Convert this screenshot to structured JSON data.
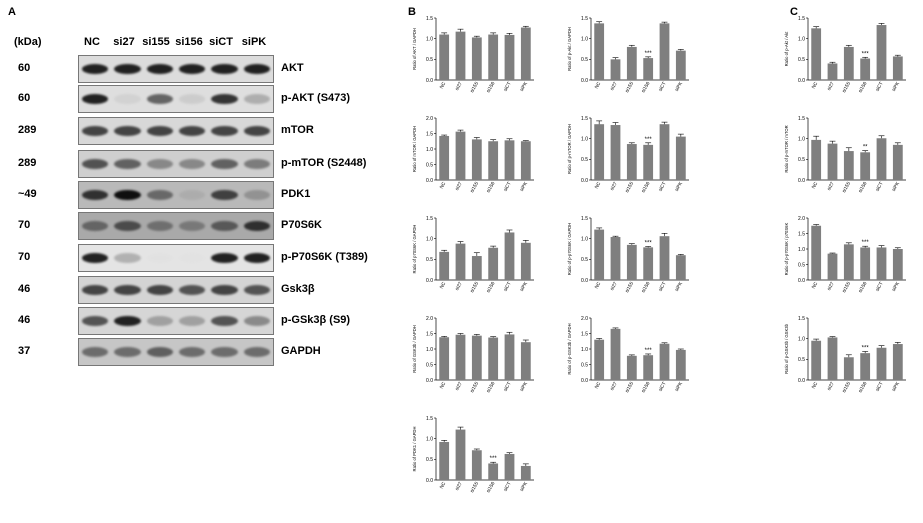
{
  "panels": {
    "a": "A",
    "b": "B",
    "c": "C"
  },
  "blot": {
    "kda_label": "(kDa)",
    "lanes": [
      "NC",
      "si27",
      "si155",
      "si156",
      "siCT",
      "siPK"
    ],
    "rows": [
      {
        "mw": "60",
        "protein": "AKT",
        "bg": "#dcdcdc",
        "intensity": [
          0.95,
          0.95,
          0.95,
          0.95,
          0.95,
          0.95
        ]
      },
      {
        "mw": "60",
        "protein": "p-AKT (S473)",
        "bg": "#dedede",
        "intensity": [
          0.95,
          0.2,
          0.75,
          0.25,
          0.9,
          0.45
        ]
      },
      {
        "mw": "289",
        "protein": "mTOR",
        "bg": "#d8d8d8",
        "intensity": [
          0.85,
          0.85,
          0.85,
          0.85,
          0.85,
          0.85
        ]
      },
      {
        "mw": "289",
        "protein": "p-mTOR (S2448)",
        "bg": "#cfcfcf",
        "intensity": [
          0.8,
          0.75,
          0.6,
          0.6,
          0.75,
          0.65
        ]
      },
      {
        "mw": "~49",
        "protein": "PDK1",
        "bg": "#b9b9b9",
        "intensity": [
          0.9,
          1.0,
          0.7,
          0.3,
          0.85,
          0.5
        ]
      },
      {
        "mw": "70",
        "protein": "P70S6K",
        "bg": "#a9a9a9",
        "intensity": [
          0.7,
          0.8,
          0.65,
          0.6,
          0.75,
          0.9
        ]
      },
      {
        "mw": "70",
        "protein": "p-P70S6K (T389)",
        "bg": "#e4e4e4",
        "intensity": [
          0.95,
          0.45,
          0.05,
          0.02,
          0.95,
          0.95
        ]
      },
      {
        "mw": "46",
        "protein": "Gsk3β",
        "bg": "#d4d4d4",
        "intensity": [
          0.85,
          0.85,
          0.85,
          0.8,
          0.85,
          0.8
        ]
      },
      {
        "mw": "46",
        "protein": "p-GSk3β (S9)",
        "bg": "#d6d6d6",
        "intensity": [
          0.8,
          0.95,
          0.5,
          0.5,
          0.8,
          0.6
        ]
      },
      {
        "mw": "37",
        "protein": "GAPDH",
        "bg": "#c6c6c6",
        "intensity": [
          0.7,
          0.7,
          0.75,
          0.7,
          0.7,
          0.7
        ]
      }
    ]
  },
  "chart_data": [
    {
      "type": "bar",
      "ylabel": "Ratio of AKT / GAPDH",
      "categories": [
        "NC",
        "si27",
        "si155",
        "si156",
        "siCT",
        "siPK"
      ],
      "values": [
        1.1,
        1.17,
        1.03,
        1.1,
        1.09,
        1.27
      ],
      "errors": [
        0.04,
        0.06,
        0.03,
        0.04,
        0.04,
        0.03
      ],
      "ylim": [
        0,
        1.5
      ],
      "yticks": [
        "0.0",
        "0.5",
        "1.0",
        "1.5"
      ],
      "stars": ""
    },
    {
      "type": "bar",
      "ylabel": "Ratio of p-Akt / GAPDH",
      "categories": [
        "NC",
        "si27",
        "si155",
        "si156",
        "siCT",
        "siPK"
      ],
      "values": [
        1.37,
        0.5,
        0.8,
        0.53,
        1.37,
        0.71
      ],
      "errors": [
        0.04,
        0.04,
        0.04,
        0.03,
        0.03,
        0.03
      ],
      "ylim": [
        0,
        1.5
      ],
      "yticks": [
        "0.0",
        "0.5",
        "1.0",
        "1.5"
      ],
      "stars": "***",
      "star_index": 3
    },
    {
      "type": "bar",
      "ylabel": "Ratio of mTOR / GAPDH",
      "categories": [
        "NC",
        "si27",
        "si155",
        "si156",
        "siCT",
        "siPK"
      ],
      "values": [
        1.42,
        1.56,
        1.31,
        1.25,
        1.28,
        1.25
      ],
      "errors": [
        0.03,
        0.05,
        0.06,
        0.05,
        0.05,
        0.02
      ],
      "ylim": [
        0,
        2.0
      ],
      "yticks": [
        "0.0",
        "0.5",
        "1.0",
        "1.5",
        "2.0"
      ],
      "stars": ""
    },
    {
      "type": "bar",
      "ylabel": "Ratio of p-mTOR / GAPDH",
      "categories": [
        "NC",
        "si27",
        "si155",
        "si156",
        "siCT",
        "siPK"
      ],
      "values": [
        1.35,
        1.33,
        0.87,
        0.85,
        1.35,
        1.05
      ],
      "errors": [
        0.08,
        0.06,
        0.03,
        0.05,
        0.05,
        0.06
      ],
      "ylim": [
        0,
        1.5
      ],
      "yticks": [
        "0.0",
        "0.5",
        "1.0",
        "1.5"
      ],
      "stars": "***",
      "star_index": 3
    },
    {
      "type": "bar",
      "ylabel": "Ratio of p70S6K / GAPDH",
      "categories": [
        "NC",
        "si27",
        "si155",
        "si156",
        "siCT",
        "siPK"
      ],
      "values": [
        0.68,
        0.88,
        0.58,
        0.78,
        1.15,
        0.9
      ],
      "errors": [
        0.04,
        0.05,
        0.08,
        0.04,
        0.06,
        0.06
      ],
      "ylim": [
        0,
        1.5
      ],
      "yticks": [
        "0.0",
        "0.5",
        "1.0",
        "1.5"
      ],
      "stars": ""
    },
    {
      "type": "bar",
      "ylabel": "Ratio of p-p70S6K / GAPDH",
      "categories": [
        "NC",
        "si27",
        "si155",
        "si156",
        "siCT",
        "siPK"
      ],
      "values": [
        1.22,
        1.04,
        0.85,
        0.79,
        1.06,
        0.6
      ],
      "errors": [
        0.04,
        0.02,
        0.03,
        0.02,
        0.07,
        0.02
      ],
      "ylim": [
        0,
        1.5
      ],
      "yticks": [
        "0.0",
        "0.5",
        "1.0",
        "1.5"
      ],
      "stars": "***",
      "star_index": 3
    },
    {
      "type": "bar",
      "ylabel": "Ratio of GSK3b / GAPDH",
      "categories": [
        "NC",
        "si27",
        "si155",
        "si156",
        "siCT",
        "siPK"
      ],
      "values": [
        1.38,
        1.46,
        1.43,
        1.37,
        1.47,
        1.22
      ],
      "errors": [
        0.03,
        0.04,
        0.04,
        0.03,
        0.07,
        0.07
      ],
      "ylim": [
        0,
        2.0
      ],
      "yticks": [
        "0.0",
        "0.5",
        "1.0",
        "1.5",
        "2.0"
      ],
      "stars": ""
    },
    {
      "type": "bar",
      "ylabel": "Ratio of p-GSK3b / GAPDH",
      "categories": [
        "NC",
        "si27",
        "si155",
        "si156",
        "siCT",
        "siPK"
      ],
      "values": [
        1.3,
        1.65,
        0.78,
        0.8,
        1.17,
        0.97
      ],
      "errors": [
        0.04,
        0.03,
        0.03,
        0.04,
        0.03,
        0.03
      ],
      "ylim": [
        0,
        2.0
      ],
      "yticks": [
        "0.0",
        "0.5",
        "1.0",
        "1.5",
        "2.0"
      ],
      "stars": "***",
      "star_index": 3
    },
    {
      "type": "bar",
      "ylabel": "Ratio of PDK1 / GAPDH",
      "categories": [
        "NC",
        "si27",
        "si155",
        "si156",
        "siCT",
        "siPK"
      ],
      "values": [
        0.92,
        1.22,
        0.72,
        0.4,
        0.63,
        0.34
      ],
      "errors": [
        0.04,
        0.06,
        0.03,
        0.03,
        0.03,
        0.05
      ],
      "ylim": [
        0,
        1.5
      ],
      "yticks": [
        "0.0",
        "0.5",
        "1.0",
        "1.5"
      ],
      "stars": "***",
      "star_index": 3
    },
    {
      "type": "bar",
      "ylabel": "Ratio of p-Akt / Akt",
      "categories": [
        "NC",
        "si27",
        "si155",
        "si156",
        "siCT",
        "siPK"
      ],
      "values": [
        1.25,
        0.4,
        0.8,
        0.52,
        1.33,
        0.57
      ],
      "errors": [
        0.04,
        0.03,
        0.04,
        0.03,
        0.04,
        0.03
      ],
      "ylim": [
        0,
        1.5
      ],
      "yticks": [
        "0.0",
        "0.5",
        "1.0",
        "1.5"
      ],
      "stars": "***",
      "star_index": 3
    },
    {
      "type": "bar",
      "ylabel": "Ratio of p-mTOR / mTOR",
      "categories": [
        "NC",
        "si27",
        "si155",
        "si156",
        "siCT",
        "siPK"
      ],
      "values": [
        0.97,
        0.88,
        0.7,
        0.67,
        1.01,
        0.85
      ],
      "errors": [
        0.09,
        0.06,
        0.08,
        0.04,
        0.06,
        0.05
      ],
      "ylim": [
        0,
        1.5
      ],
      "yticks": [
        "0.0",
        "0.5",
        "1.0",
        "1.5"
      ],
      "stars": "**",
      "star_index": 3
    },
    {
      "type": "bar",
      "ylabel": "Ratio of p-p70S6K / p70S6K",
      "categories": [
        "NC",
        "si27",
        "si155",
        "si156",
        "siCT",
        "siPK"
      ],
      "values": [
        1.75,
        0.85,
        1.15,
        1.05,
        1.05,
        1.0
      ],
      "errors": [
        0.04,
        0.02,
        0.05,
        0.04,
        0.06,
        0.04
      ],
      "ylim": [
        0,
        2.0
      ],
      "yticks": [
        "0.0",
        "0.5",
        "1.0",
        "1.5",
        "2.0"
      ],
      "stars": "***",
      "star_index": 3
    },
    {
      "type": "bar",
      "ylabel": "Ratio of p-GSK3b / GSK3b",
      "categories": [
        "NC",
        "si27",
        "si155",
        "si156",
        "siCT",
        "siPK"
      ],
      "values": [
        0.95,
        1.03,
        0.55,
        0.65,
        0.78,
        0.87
      ],
      "errors": [
        0.04,
        0.02,
        0.06,
        0.04,
        0.05,
        0.04
      ],
      "ylim": [
        0,
        1.5
      ],
      "yticks": [
        "0.0",
        "0.5",
        "1.0",
        "1.5"
      ],
      "stars": "***",
      "star_index": 3
    }
  ]
}
